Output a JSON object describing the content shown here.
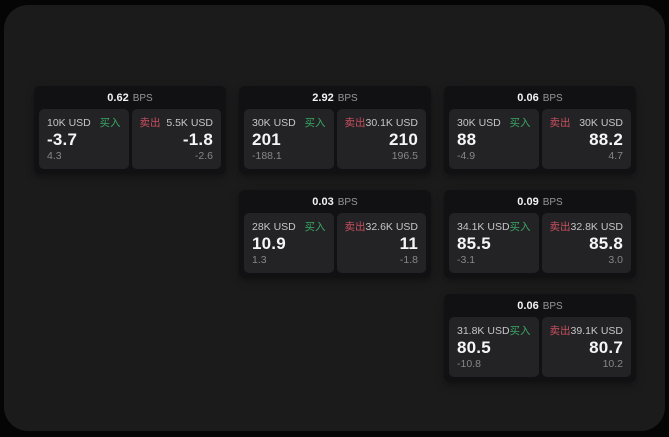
{
  "labels": {
    "bps_unit": "BPS",
    "buy": "买入",
    "sell": "卖出"
  },
  "colors": {
    "page_bg": "#050505",
    "panel_bg": "#1b1b1c",
    "card_bg": "#111113",
    "cell_bg": "#232325",
    "buy_green": "#39a864",
    "sell_red": "#c94f5f",
    "value_white": "#f5f5f7",
    "label_grey": "#c6c6c9",
    "delta_grey": "#87878b"
  },
  "cards": [
    {
      "col": 1,
      "row": 1,
      "bps": "0.62",
      "buy": {
        "amount": "10K USD",
        "value": "-3.7",
        "delta": "4.3"
      },
      "sell": {
        "amount": "5.5K USD",
        "value": "-1.8",
        "delta": "-2.6"
      }
    },
    {
      "col": 2,
      "row": 1,
      "bps": "2.92",
      "buy": {
        "amount": "30K USD",
        "value": "201",
        "delta": "-188.1"
      },
      "sell": {
        "amount": "30.1K USD",
        "value": "210",
        "delta": "196.5"
      }
    },
    {
      "col": 3,
      "row": 1,
      "bps": "0.06",
      "buy": {
        "amount": "30K USD",
        "value": "88",
        "delta": "-4.9"
      },
      "sell": {
        "amount": "30K USD",
        "value": "88.2",
        "delta": "4.7"
      }
    },
    {
      "col": 2,
      "row": 2,
      "bps": "0.03",
      "buy": {
        "amount": "28K USD",
        "value": "10.9",
        "delta": "1.3"
      },
      "sell": {
        "amount": "32.6K USD",
        "value": "11",
        "delta": "-1.8"
      }
    },
    {
      "col": 3,
      "row": 2,
      "bps": "0.09",
      "buy": {
        "amount": "34.1K USD",
        "value": "85.5",
        "delta": "-3.1"
      },
      "sell": {
        "amount": "32.8K USD",
        "value": "85.8",
        "delta": "3.0"
      }
    },
    {
      "col": 3,
      "row": 3,
      "bps": "0.06",
      "buy": {
        "amount": "31.8K USD",
        "value": "80.5",
        "delta": "-10.8"
      },
      "sell": {
        "amount": "39.1K USD",
        "value": "80.7",
        "delta": "10.2"
      }
    }
  ]
}
